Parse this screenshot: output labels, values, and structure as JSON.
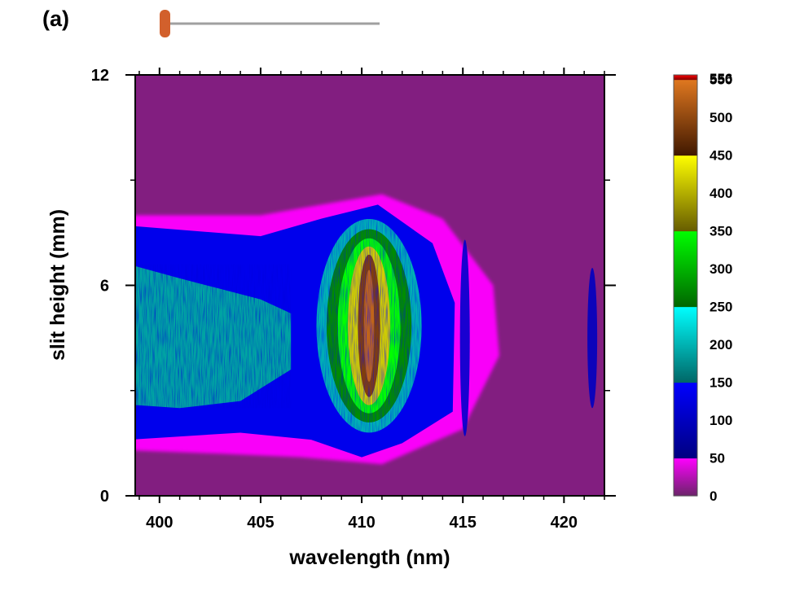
{
  "panel_label": "(a)",
  "chart_data": {
    "type": "heatmap",
    "title": "",
    "xlabel": "wavelength (nm)",
    "ylabel": "slit height (mm)",
    "xlim": [
      398.8,
      422.0
    ],
    "ylim": [
      0,
      12
    ],
    "x_ticks": [
      400,
      405,
      410,
      415,
      420
    ],
    "y_ticks": [
      0,
      6,
      12
    ],
    "x_tick_labels": [
      "400",
      "405",
      "410",
      "415",
      "420"
    ],
    "y_tick_labels": [
      "0",
      "6",
      "12"
    ],
    "grid": false,
    "colorbar": {
      "range": [
        0,
        556
      ],
      "tick_values": [
        0,
        50,
        100,
        150,
        200,
        250,
        300,
        350,
        400,
        450,
        500,
        550,
        556
      ],
      "tick_labels": [
        "0",
        "50",
        "100",
        "150",
        "200",
        "250",
        "300",
        "350",
        "400",
        "450",
        "500",
        "550",
        "556"
      ],
      "color_bands": [
        {
          "from": 0,
          "to": 50,
          "colors": [
            "#6a2468",
            "#ff00ff"
          ]
        },
        {
          "from": 50,
          "to": 150,
          "colors": [
            "#000080",
            "#0000ff"
          ]
        },
        {
          "from": 150,
          "to": 250,
          "colors": [
            "#006666",
            "#00ffff"
          ]
        },
        {
          "from": 250,
          "to": 350,
          "colors": [
            "#006600",
            "#00ff00"
          ]
        },
        {
          "from": 350,
          "to": 450,
          "colors": [
            "#665c00",
            "#ffff00"
          ]
        },
        {
          "from": 450,
          "to": 550,
          "colors": [
            "#401800",
            "#e07820"
          ]
        },
        {
          "from": 550,
          "to": 556,
          "colors": [
            "#800000",
            "#ff0000"
          ]
        }
      ]
    },
    "features": [
      {
        "description": "broad emission band",
        "x_range": [
          398.8,
          413.5
        ],
        "y_range": [
          1.2,
          8.2
        ],
        "peak_intensity_approx": 160
      },
      {
        "description": "bright line",
        "x_center": 410.2,
        "x_half_width": 1.0,
        "y_center": 4.8,
        "y_half_height": 2.9,
        "peak_intensity_approx": 520
      },
      {
        "description": "narrow line",
        "x_center": 415.1,
        "y_center": 4.5,
        "y_half_height": 2.8,
        "peak_intensity_approx": 110
      },
      {
        "description": "narrow line",
        "x_center": 421.4,
        "y_center": 4.5,
        "y_half_height": 2.0,
        "peak_intensity_approx": 100
      }
    ]
  },
  "slider": {
    "value_fraction": 0.0,
    "track_color": "#a0a0a0",
    "handle_color": "#d2602c"
  }
}
